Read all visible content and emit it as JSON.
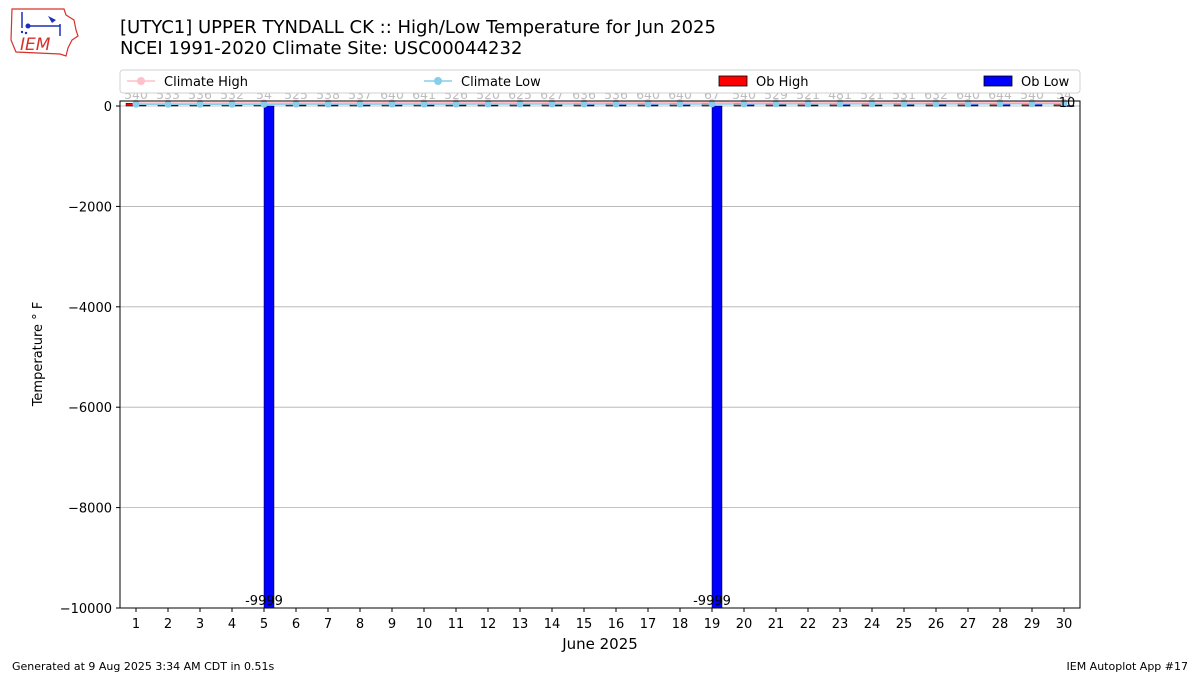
{
  "header": {
    "title_line1": "[UTYC1] UPPER TYNDALL CK :: High/Low Temperature for Jun 2025",
    "title_line2": "NCEI 1991-2020 Climate Site: USC00044232",
    "logo_text": "IEM"
  },
  "footer": {
    "generated": "Generated at 9 Aug 2025 3:34 AM CDT in 0.51s",
    "app": "IEM Autoplot App #17"
  },
  "colors": {
    "climate_high": "#ffc0cb",
    "climate_low": "#87ceeb",
    "ob_high": "#ff0000",
    "ob_low": "#0000ff",
    "grid": "#b0b0b0",
    "logo_red": "#d9302a",
    "logo_blue": "#1c2fb8"
  },
  "chart_data": {
    "type": "bar",
    "xlabel": "June 2025",
    "ylabel": "Temperature ° F",
    "ylim": [
      -10000,
      100
    ],
    "yticks": [
      0,
      -2000,
      -4000,
      -6000,
      -8000,
      -10000
    ],
    "xticks": [
      "1",
      "2",
      "3",
      "4",
      "5",
      "6",
      "7",
      "8",
      "9",
      "10",
      "11",
      "12",
      "13",
      "14",
      "15",
      "16",
      "17",
      "18",
      "19",
      "20",
      "21",
      "22",
      "23",
      "24",
      "25",
      "26",
      "27",
      "28",
      "29",
      "30"
    ],
    "grid": true,
    "legend_position": "top",
    "days": [
      1,
      2,
      3,
      4,
      5,
      6,
      7,
      8,
      9,
      10,
      11,
      12,
      13,
      14,
      15,
      16,
      17,
      18,
      19,
      20,
      21,
      22,
      23,
      24,
      25,
      26,
      27,
      28,
      29,
      30
    ],
    "series": [
      {
        "name": "Climate High",
        "kind": "line",
        "values": [
          60,
          61,
          61,
          62,
          62,
          63,
          63,
          64,
          64,
          65,
          65,
          66,
          66,
          67,
          67,
          68,
          68,
          69,
          69,
          70,
          70,
          71,
          71,
          72,
          72,
          72,
          73,
          73,
          74,
          74
        ]
      },
      {
        "name": "Climate Low",
        "kind": "line",
        "values": [
          35,
          35,
          36,
          36,
          36,
          37,
          37,
          37,
          38,
          38,
          38,
          39,
          39,
          39,
          40,
          40,
          40,
          41,
          41,
          41,
          42,
          42,
          42,
          42,
          43,
          43,
          43,
          44,
          44,
          44
        ]
      },
      {
        "name": "Ob High",
        "kind": "bar",
        "values": [
          54,
          53,
          53,
          53,
          54,
          52,
          53,
          53,
          64,
          64,
          52,
          52,
          62,
          62,
          63,
          53,
          64,
          64,
          67,
          54,
          52,
          52,
          48,
          52,
          53,
          63,
          64,
          64,
          54,
          54
        ]
      },
      {
        "name": "Ob Low",
        "kind": "bar",
        "values": [
          40,
          33,
          36,
          32,
          -9999,
          25,
          38,
          37,
          40,
          41,
          26,
          20,
          25,
          27,
          36,
          36,
          40,
          40,
          -9999,
          40,
          29,
          21,
          41,
          21,
          31,
          32,
          40,
          44,
          40,
          10
        ]
      }
    ],
    "bar_labels": [
      "540",
      "533",
      "536",
      "532",
      "54",
      "525",
      "538",
      "537",
      "640",
      "641",
      "526",
      "520",
      "625",
      "627",
      "636",
      "536",
      "640",
      "640",
      "67",
      "540",
      "529",
      "521",
      "481",
      "521",
      "531",
      "632",
      "640",
      "644",
      "540",
      "54"
    ],
    "ob_low_labels": [
      "",
      "",
      "",
      "",
      "-9999",
      "",
      "",
      "",
      "",
      "",
      "",
      "",
      "",
      "",
      "",
      "",
      "",
      "",
      "-9999",
      "",
      "",
      "",
      "",
      "",
      "",
      "",
      "",
      "",
      "",
      "10"
    ]
  }
}
